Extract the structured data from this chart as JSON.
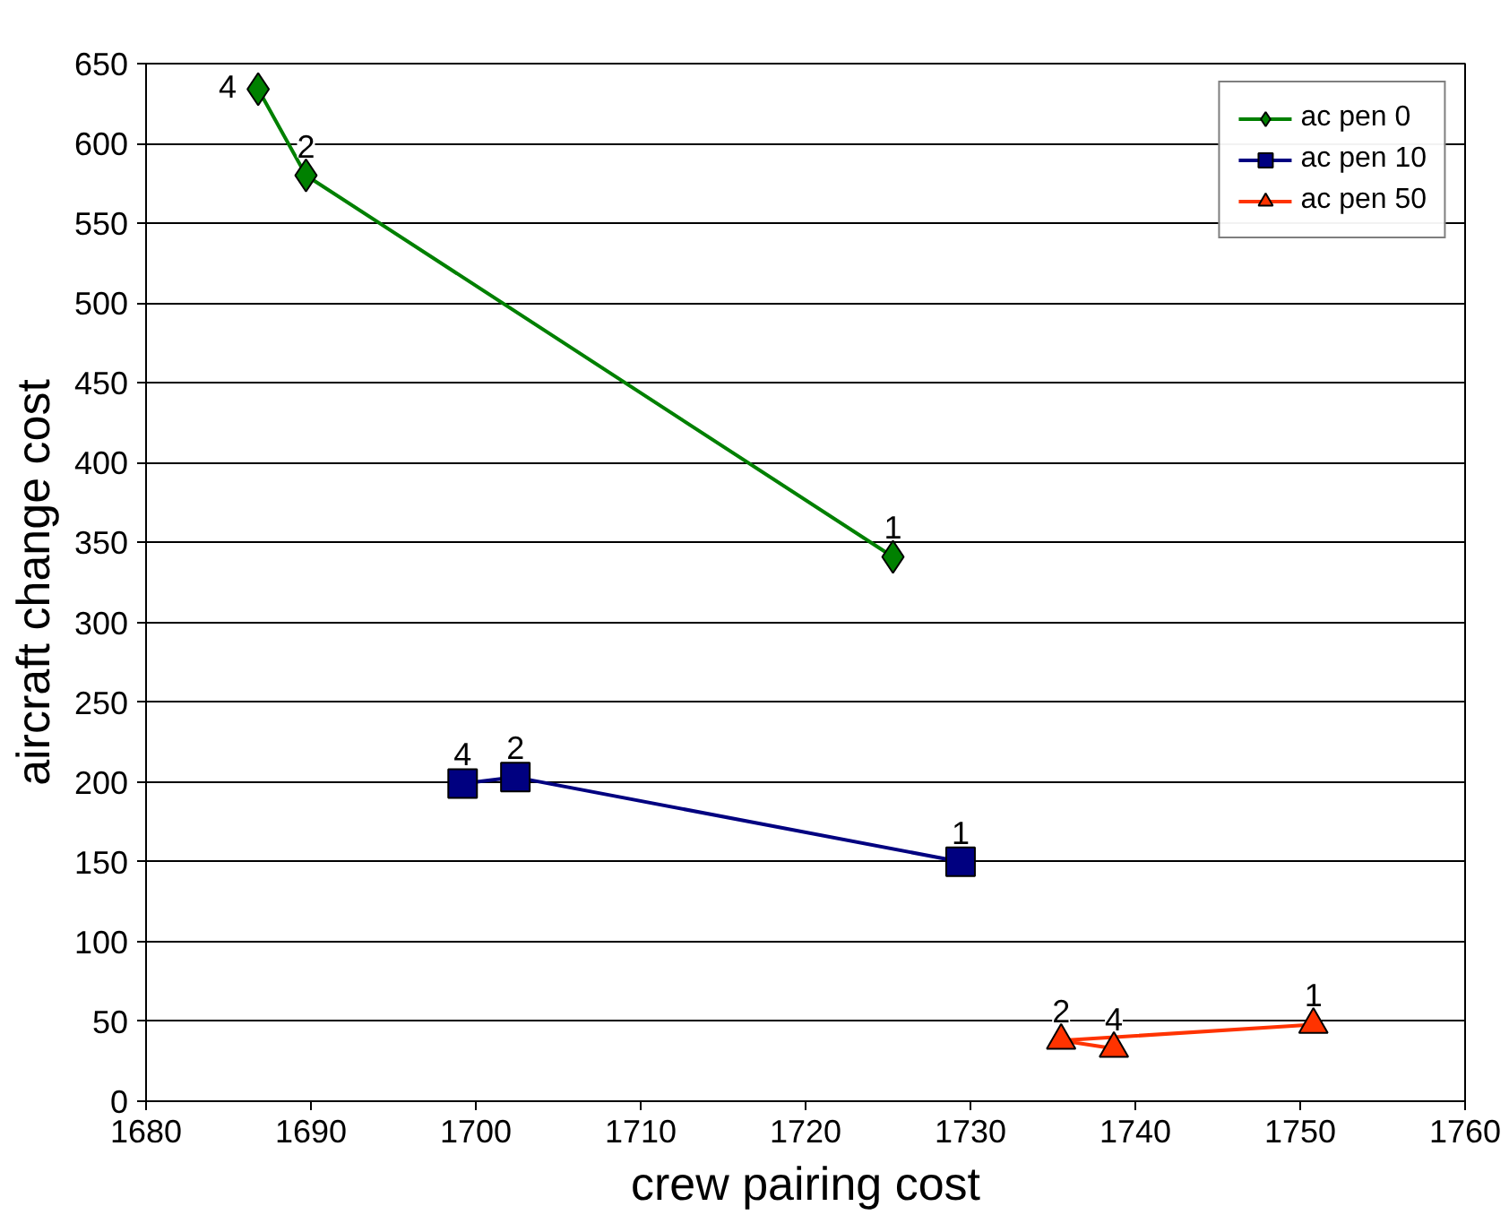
{
  "chart_data": {
    "type": "line",
    "xlabel": "crew pairing cost",
    "ylabel": "aircraft change cost",
    "xlim": [
      1680,
      1760
    ],
    "xticks": [
      1680,
      1690,
      1700,
      1710,
      1720,
      1730,
      1740,
      1750,
      1760
    ],
    "ylim": [
      0,
      650
    ],
    "yticks": [
      0,
      50,
      100,
      150,
      200,
      250,
      300,
      350,
      400,
      450,
      500,
      550,
      600,
      650
    ],
    "grid": "y",
    "legend": "top right",
    "line_style": "solid",
    "series": [
      {
        "name": "ac pen 0",
        "color": "#008000",
        "marker": "diamond",
        "x": [
          1686.8,
          1689.7,
          1725.3
        ],
        "values": [
          634,
          580,
          341
        ]
      },
      {
        "name": "ac pen 10",
        "color": "#000080",
        "marker": "square",
        "x": [
          1699.2,
          1702.4,
          1729.4
        ],
        "values": [
          199,
          203,
          150
        ]
      },
      {
        "name": "ac pen 50",
        "color": "#ff3300",
        "marker": "triangle",
        "x": [
          1738.7,
          1735.5,
          1750.8
        ],
        "values": [
          33,
          38,
          48
        ]
      }
    ],
    "annotations": [
      {
        "text": "4",
        "x": 1686.8,
        "y": 634
      },
      {
        "text": "2",
        "x": 1689.7,
        "y": 580
      },
      {
        "text": "1",
        "x": 1725.3,
        "y": 341
      },
      {
        "text": "4",
        "x": 1699.2,
        "y": 199
      },
      {
        "text": "2",
        "x": 1702.4,
        "y": 203
      },
      {
        "text": "1",
        "x": 1729.4,
        "y": 150
      },
      {
        "text": "4",
        "x": 1738.7,
        "y": 33
      },
      {
        "text": "2",
        "x": 1735.5,
        "y": 38
      },
      {
        "text": "1",
        "x": 1750.8,
        "y": 48
      }
    ]
  }
}
